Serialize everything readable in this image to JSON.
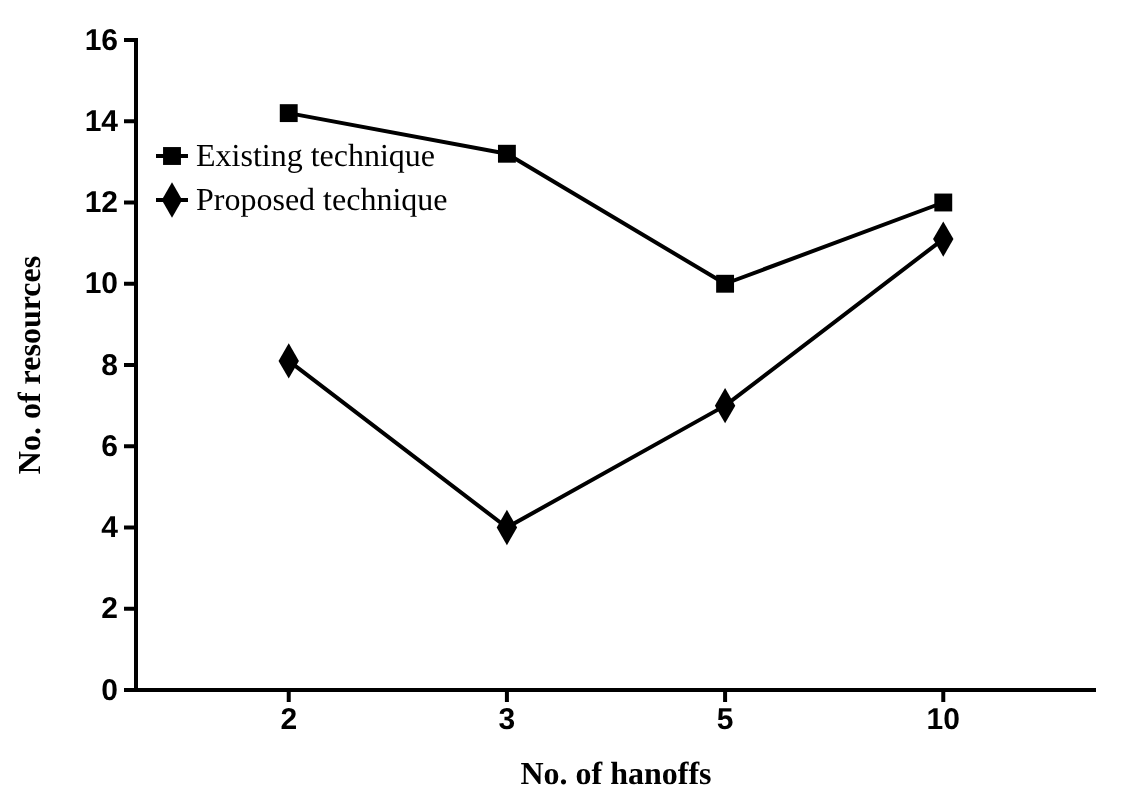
{
  "chart_data": {
    "type": "line",
    "xlabel": "No. of hanoffs",
    "ylabel": "No. of resources",
    "categories": [
      "2",
      "3",
      "5",
      "10"
    ],
    "series": [
      {
        "name": "Existing technique",
        "color": "#000000",
        "marker": "square",
        "values": [
          14.2,
          13.2,
          10,
          12
        ]
      },
      {
        "name": "Proposed technique",
        "color": "#000000",
        "marker": "diamond",
        "values": [
          8.1,
          4,
          7,
          11.1
        ]
      }
    ],
    "ylim": [
      0,
      16
    ],
    "yticks": [
      0,
      2,
      4,
      6,
      8,
      10,
      12,
      14,
      16
    ],
    "grid": false,
    "legend": "top left",
    "line_style": "solid"
  }
}
